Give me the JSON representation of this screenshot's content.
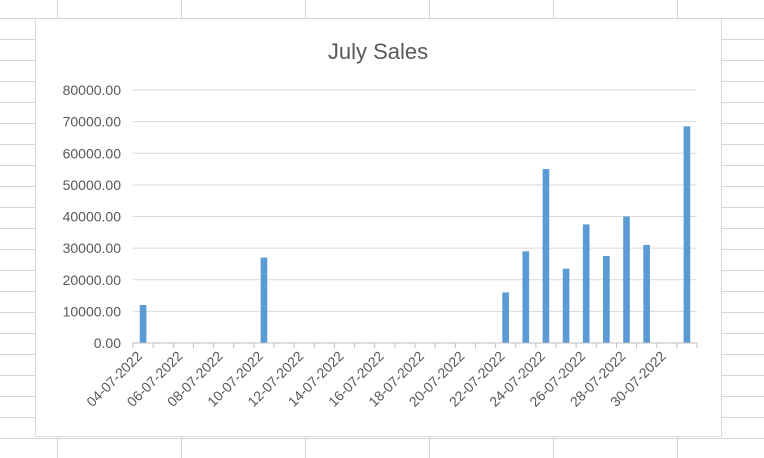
{
  "chart_data": {
    "type": "bar",
    "title": "July Sales",
    "xlabel": "",
    "ylabel": "",
    "ylim": [
      0,
      80000
    ],
    "y_ticks": [
      "0.00",
      "10000.00",
      "20000.00",
      "30000.00",
      "40000.00",
      "50000.00",
      "60000.00",
      "70000.00",
      "80000.00"
    ],
    "x_axis": {
      "type": "date",
      "start": "04-07-2022",
      "end": "31-07-2022",
      "tick_labels": [
        "04-07-2022",
        "06-07-2022",
        "08-07-2022",
        "10-07-2022",
        "12-07-2022",
        "14-07-2022",
        "16-07-2022",
        "18-07-2022",
        "20-07-2022",
        "22-07-2022",
        "24-07-2022",
        "26-07-2022",
        "28-07-2022",
        "30-07-2022"
      ]
    },
    "points": [
      {
        "date": "04-07-2022",
        "value": 12000
      },
      {
        "date": "10-07-2022",
        "value": 27000
      },
      {
        "date": "22-07-2022",
        "value": 16000
      },
      {
        "date": "23-07-2022",
        "value": 29000
      },
      {
        "date": "24-07-2022",
        "value": 55000
      },
      {
        "date": "25-07-2022",
        "value": 23500
      },
      {
        "date": "26-07-2022",
        "value": 37500
      },
      {
        "date": "27-07-2022",
        "value": 27500
      },
      {
        "date": "28-07-2022",
        "value": 40000
      },
      {
        "date": "29-07-2022",
        "value": 31000
      },
      {
        "date": "31-07-2022",
        "value": 68500
      }
    ],
    "grid": true,
    "legend": "none",
    "bar_color": "#5b9bd5"
  }
}
